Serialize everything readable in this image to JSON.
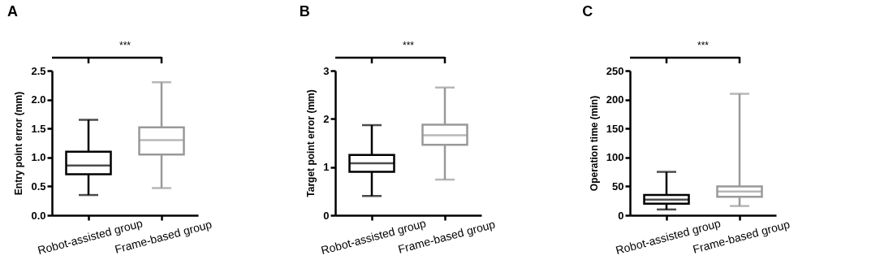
{
  "chart_data": [
    {
      "type": "box",
      "title": "A",
      "ylabel": "Entry point error (mm)",
      "categories": [
        "Robot-assisted group",
        "Frame-based group"
      ],
      "colors": [
        "#000000",
        "#999999"
      ],
      "boxes": [
        {
          "low": 0.35,
          "q1": 0.71,
          "median": 0.86,
          "q3": 1.1,
          "high": 1.65
        },
        {
          "low": 0.47,
          "q1": 1.05,
          "median": 1.3,
          "q3": 1.52,
          "high": 2.3
        }
      ],
      "ylim": [
        0,
        2.5
      ],
      "yticks": [
        {
          "value": 0,
          "label": "0.0"
        },
        {
          "value": 0.5,
          "label": "0.5"
        },
        {
          "value": 1,
          "label": "1.0"
        },
        {
          "value": 1.5,
          "label": "1.5"
        },
        {
          "value": 2,
          "label": "2.0"
        },
        {
          "value": 2.5,
          "label": "2.5"
        }
      ],
      "annotations": [
        "***"
      ],
      "grid": false,
      "legend": false
    },
    {
      "type": "box",
      "title": "B",
      "ylabel": "Target point error (mm)",
      "categories": [
        "Robot-assisted group",
        "Frame-based group"
      ],
      "colors": [
        "#000000",
        "#999999"
      ],
      "boxes": [
        {
          "low": 0.4,
          "q1": 0.9,
          "median": 1.08,
          "q3": 1.25,
          "high": 1.87
        },
        {
          "low": 0.74,
          "q1": 1.46,
          "median": 1.66,
          "q3": 1.88,
          "high": 2.65
        }
      ],
      "ylim": [
        0,
        3
      ],
      "yticks": [
        0,
        1,
        2,
        3
      ],
      "annotations": [
        "***"
      ],
      "grid": false,
      "legend": false
    },
    {
      "type": "box",
      "title": "C",
      "ylabel": "Operation time (min)",
      "categories": [
        "Robot-assisted group",
        "Frame-based group"
      ],
      "colors": [
        "#000000",
        "#999999"
      ],
      "boxes": [
        {
          "low": 10,
          "q1": 20,
          "median": 27,
          "q3": 35,
          "high": 75
        },
        {
          "low": 16,
          "q1": 32,
          "median": 41,
          "q3": 50,
          "high": 210
        }
      ],
      "ylim": [
        0,
        250
      ],
      "yticks": [
        0,
        50,
        100,
        150,
        200,
        250
      ],
      "annotations": [
        "***"
      ],
      "grid": false,
      "legend": false
    }
  ]
}
